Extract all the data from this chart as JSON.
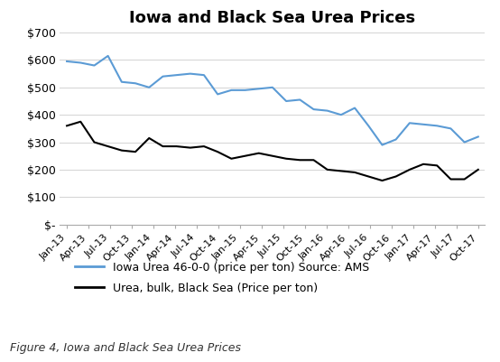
{
  "title": "Iowa and Black Sea Urea Prices",
  "figure_caption": "Figure 4, Iowa and Black Sea Urea Prices",
  "x_labels": [
    "Jan-13",
    "Apr-13",
    "Jul-13",
    "Oct-13",
    "Jan-14",
    "Apr-14",
    "Jul-14",
    "Oct-14",
    "Jan-15",
    "Apr-15",
    "Jul-15",
    "Oct-15",
    "Jan-16",
    "Apr-16",
    "Jul-16",
    "Oct-16",
    "Jan-17",
    "Apr-17",
    "Jul-17",
    "Oct-17"
  ],
  "iowa_urea": [
    595,
    590,
    580,
    615,
    520,
    515,
    500,
    540,
    545,
    550,
    545,
    475,
    490,
    490,
    495,
    500,
    450,
    455,
    420,
    415,
    400,
    425,
    360,
    290,
    310,
    370,
    365,
    360,
    350,
    300,
    320
  ],
  "black_sea_urea": [
    360,
    375,
    300,
    285,
    270,
    265,
    315,
    285,
    285,
    280,
    285,
    265,
    240,
    250,
    260,
    250,
    240,
    235,
    235,
    200,
    195,
    190,
    175,
    160,
    175,
    200,
    220,
    215,
    165,
    165,
    200
  ],
  "iowa_color": "#5B9BD5",
  "black_sea_color": "#000000",
  "iowa_label": "Iowa Urea 46-0-0 (price per ton) Source: AMS",
  "black_sea_label": "Urea, bulk, Black Sea (Price per ton)",
  "ylim": [
    0,
    700
  ],
  "yticks": [
    0,
    100,
    200,
    300,
    400,
    500,
    600,
    700
  ],
  "ytick_labels": [
    "$-",
    "$100",
    "$200",
    "$300",
    "$400",
    "$500",
    "$600",
    "$700"
  ],
  "background_color": "#ffffff",
  "grid_color": "#d3d3d3",
  "title_fontsize": 13,
  "legend_fontsize": 9,
  "caption_fontsize": 9
}
